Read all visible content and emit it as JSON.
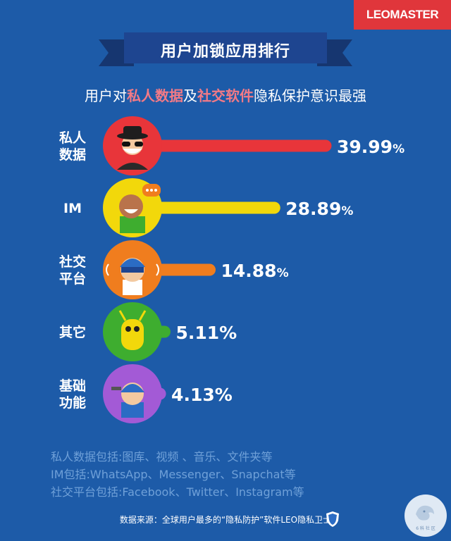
{
  "brand": "LEOMASTER",
  "title": "用户加锁应用排行",
  "subtitle": {
    "parts": [
      {
        "text": "用户对",
        "hl": false
      },
      {
        "text": "私人数据",
        "hl": true
      },
      {
        "text": "及",
        "hl": false
      },
      {
        "text": "社交软件",
        "hl": true
      },
      {
        "text": "隐私保护意识最强",
        "hl": false
      }
    ]
  },
  "chart_data": {
    "type": "bar",
    "orientation": "horizontal",
    "categories": [
      "私人数据",
      "IM",
      "社交平台",
      "其它",
      "基础功能"
    ],
    "category_lines": [
      [
        "私人",
        "数据"
      ],
      [
        "IM"
      ],
      [
        "社交",
        "平台"
      ],
      [
        "其它"
      ],
      [
        "基础",
        "功能"
      ]
    ],
    "values": [
      39.99,
      28.89,
      14.88,
      5.11,
      4.13
    ],
    "value_labels": [
      "39.99",
      "28.89",
      "14.88",
      "5.11%",
      "4.13%"
    ],
    "unit_suffix": [
      "%",
      "%",
      "%",
      "",
      ""
    ],
    "colors": [
      "#e8353a",
      "#f2d80b",
      "#f07d1e",
      "#3ead2f",
      "#a35ad6"
    ],
    "icons": [
      "masked-person-icon",
      "chat-person-icon",
      "headset-person-icon",
      "green-alien-icon",
      "worker-person-icon"
    ]
  },
  "notes": [
    "私人数据包括:图库、视频 、音乐、文件夹等",
    "IM包括:WhatsApp、Messenger、Snapchat等",
    "社交平台包括:Facebook、Twitter、Instagram等"
  ],
  "source": "数据来源：全球用户最多的“隐私防护”软件LEO隐私卫士",
  "watermark": "6 科 社 区",
  "colors": {
    "background": "#1d5ba8",
    "ribbon": "#1a3d82",
    "accent": "#e0363b"
  }
}
